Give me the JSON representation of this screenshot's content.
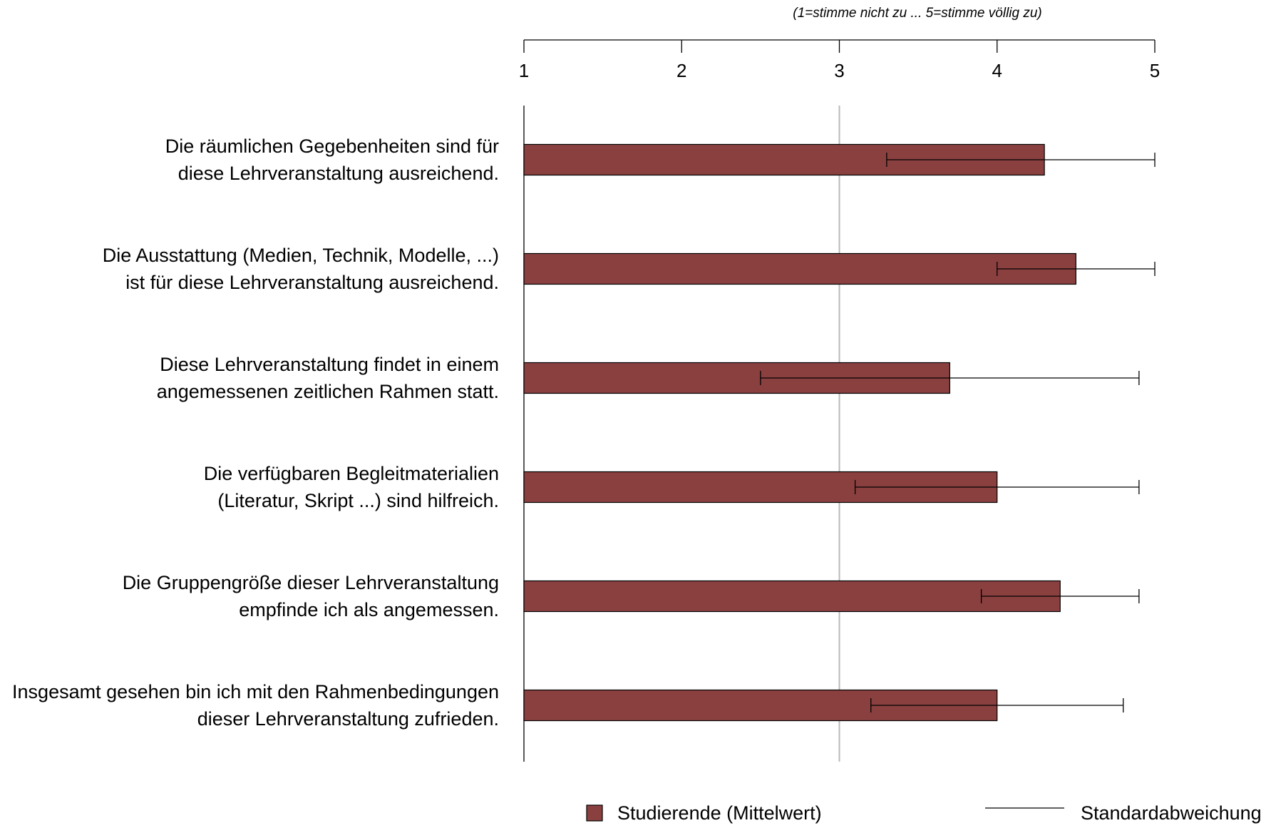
{
  "chart_data": {
    "type": "bar",
    "orientation": "horizontal",
    "scale_note": "(1=stimme nicht zu ... 5=stimme völlig zu)",
    "xlim": [
      1,
      5
    ],
    "ticks": [
      "1",
      "2",
      "3",
      "4",
      "5"
    ],
    "reference_line": 3,
    "categories": [
      [
        "Die räumlichen Gegebenheiten sind für",
        "diese Lehrveranstaltung ausreichend."
      ],
      [
        "Die Ausstattung (Medien, Technik, Modelle, ...)",
        "ist für diese Lehrveranstaltung ausreichend."
      ],
      [
        "Diese Lehrveranstaltung findet in einem",
        "angemessenen zeitlichen Rahmen statt."
      ],
      [
        "Die verfügbaren Begleitmaterialien",
        "(Literatur, Skript ...) sind hilfreich."
      ],
      [
        "Die Gruppengröße dieser Lehrveranstaltung",
        "empfinde ich als angemessen."
      ],
      [
        "Insgesamt gesehen bin ich mit den Rahmenbedingungen",
        "dieser Lehrveranstaltung zufrieden."
      ]
    ],
    "series": [
      {
        "name": "Studierende (Mittelwert)",
        "values": [
          4.3,
          4.5,
          3.7,
          4.0,
          4.4,
          4.0
        ],
        "color": "#8b4040"
      }
    ],
    "error_bars": {
      "name": "Standardabweichung",
      "low": [
        3.3,
        4.0,
        2.5,
        3.1,
        3.9,
        3.2
      ],
      "high": [
        5.0,
        5.0,
        4.9,
        4.9,
        4.9,
        4.8
      ]
    },
    "legend": {
      "placement": "bottom",
      "items": [
        "Studierende (Mittelwert)",
        "Standardabweichung"
      ]
    },
    "grid": false
  }
}
